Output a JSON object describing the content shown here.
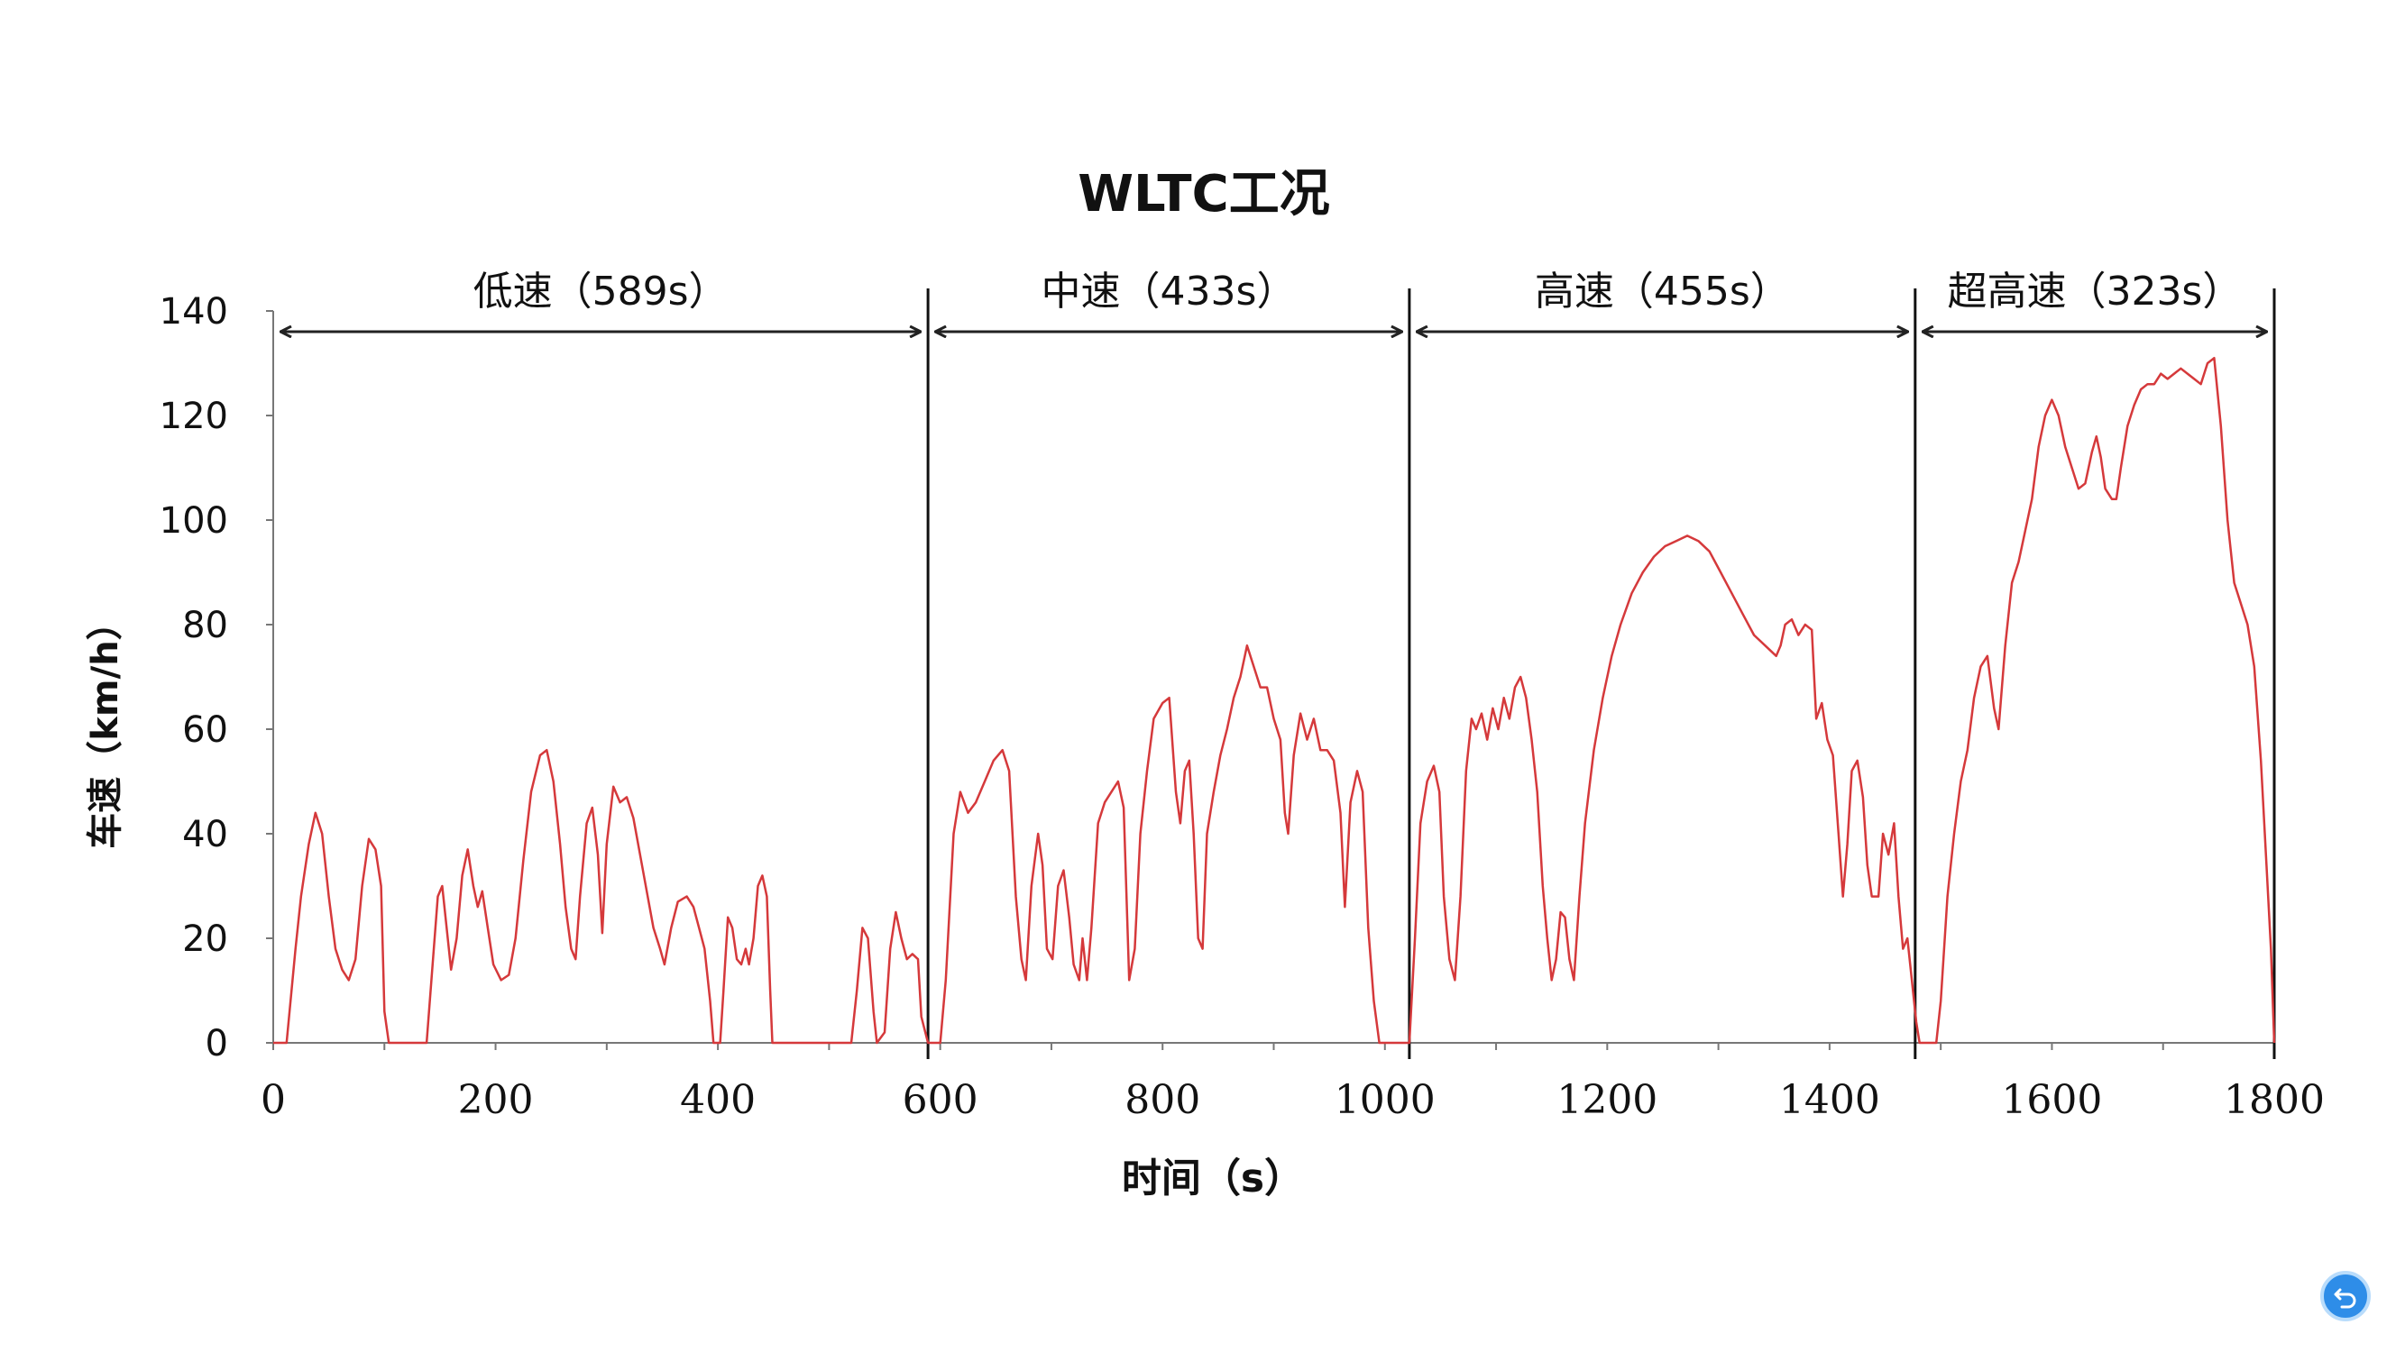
{
  "chart_data": {
    "type": "line",
    "title": "WLTC工况",
    "xlabel": "时间（s）",
    "ylabel": "车速（km/h）",
    "xlim": [
      0,
      1800
    ],
    "ylim": [
      0,
      140
    ],
    "xticks": [
      0,
      200,
      400,
      600,
      800,
      1000,
      1200,
      1400,
      1600,
      1800
    ],
    "yticks": [
      0,
      20,
      40,
      60,
      80,
      100,
      120,
      140
    ],
    "grid": false,
    "segments": [
      {
        "label": "低速（589s）",
        "start": 0,
        "end": 589
      },
      {
        "label": "中速（433s）",
        "start": 589,
        "end": 1022
      },
      {
        "label": "高速（455s）",
        "start": 1022,
        "end": 1477
      },
      {
        "label": "超高速（323s）",
        "start": 1477,
        "end": 1800
      }
    ],
    "series": [
      {
        "color": "#d5393b",
        "points": [
          [
            0,
            0
          ],
          [
            12,
            0
          ],
          [
            20,
            18
          ],
          [
            25,
            28
          ],
          [
            32,
            38
          ],
          [
            38,
            44
          ],
          [
            44,
            40
          ],
          [
            50,
            28
          ],
          [
            56,
            18
          ],
          [
            62,
            14
          ],
          [
            68,
            12
          ],
          [
            74,
            16
          ],
          [
            80,
            30
          ],
          [
            86,
            39
          ],
          [
            92,
            37
          ],
          [
            97,
            30
          ],
          [
            100,
            6
          ],
          [
            104,
            0
          ],
          [
            138,
            0
          ],
          [
            143,
            14
          ],
          [
            148,
            28
          ],
          [
            152,
            30
          ],
          [
            156,
            22
          ],
          [
            160,
            14
          ],
          [
            165,
            20
          ],
          [
            170,
            32
          ],
          [
            175,
            37
          ],
          [
            180,
            30
          ],
          [
            184,
            26
          ],
          [
            188,
            29
          ],
          [
            193,
            22
          ],
          [
            198,
            15
          ],
          [
            205,
            12
          ],
          [
            212,
            13
          ],
          [
            218,
            20
          ],
          [
            225,
            35
          ],
          [
            232,
            48
          ],
          [
            240,
            55
          ],
          [
            246,
            56
          ],
          [
            252,
            50
          ],
          [
            258,
            38
          ],
          [
            263,
            26
          ],
          [
            268,
            18
          ],
          [
            272,
            16
          ],
          [
            276,
            28
          ],
          [
            282,
            42
          ],
          [
            287,
            45
          ],
          [
            292,
            36
          ],
          [
            296,
            21
          ],
          [
            300,
            38
          ],
          [
            306,
            49
          ],
          [
            312,
            46
          ],
          [
            318,
            47
          ],
          [
            324,
            43
          ],
          [
            330,
            36
          ],
          [
            336,
            29
          ],
          [
            342,
            22
          ],
          [
            348,
            18
          ],
          [
            352,
            15
          ],
          [
            358,
            22
          ],
          [
            364,
            27
          ],
          [
            372,
            28
          ],
          [
            378,
            26
          ],
          [
            383,
            22
          ],
          [
            388,
            18
          ],
          [
            393,
            8
          ],
          [
            396,
            0
          ],
          [
            402,
            0
          ],
          [
            405,
            10
          ],
          [
            409,
            24
          ],
          [
            413,
            22
          ],
          [
            417,
            16
          ],
          [
            421,
            15
          ],
          [
            425,
            18
          ],
          [
            428,
            15
          ],
          [
            432,
            20
          ],
          [
            436,
            30
          ],
          [
            440,
            32
          ],
          [
            444,
            28
          ],
          [
            447,
            10
          ],
          [
            449,
            0
          ],
          [
            520,
            0
          ],
          [
            525,
            10
          ],
          [
            530,
            22
          ],
          [
            535,
            20
          ],
          [
            540,
            6
          ],
          [
            543,
            0
          ],
          [
            550,
            2
          ],
          [
            555,
            18
          ],
          [
            560,
            25
          ],
          [
            565,
            20
          ],
          [
            570,
            16
          ],
          [
            575,
            17
          ],
          [
            580,
            16
          ],
          [
            583,
            5
          ],
          [
            589,
            0
          ],
          [
            600,
            0
          ],
          [
            605,
            12
          ],
          [
            612,
            40
          ],
          [
            618,
            48
          ],
          [
            625,
            44
          ],
          [
            632,
            46
          ],
          [
            640,
            50
          ],
          [
            648,
            54
          ],
          [
            656,
            56
          ],
          [
            662,
            52
          ],
          [
            668,
            28
          ],
          [
            673,
            16
          ],
          [
            677,
            12
          ],
          [
            682,
            30
          ],
          [
            688,
            40
          ],
          [
            692,
            34
          ],
          [
            696,
            18
          ],
          [
            701,
            16
          ],
          [
            706,
            30
          ],
          [
            711,
            33
          ],
          [
            716,
            24
          ],
          [
            720,
            15
          ],
          [
            725,
            12
          ],
          [
            728,
            20
          ],
          [
            732,
            12
          ],
          [
            736,
            22
          ],
          [
            742,
            42
          ],
          [
            748,
            46
          ],
          [
            754,
            48
          ],
          [
            760,
            50
          ],
          [
            765,
            45
          ],
          [
            770,
            12
          ],
          [
            775,
            18
          ],
          [
            780,
            40
          ],
          [
            786,
            52
          ],
          [
            792,
            62
          ],
          [
            800,
            65
          ],
          [
            806,
            66
          ],
          [
            812,
            48
          ],
          [
            816,
            42
          ],
          [
            820,
            52
          ],
          [
            824,
            54
          ],
          [
            828,
            40
          ],
          [
            832,
            20
          ],
          [
            836,
            18
          ],
          [
            840,
            40
          ],
          [
            846,
            48
          ],
          [
            852,
            55
          ],
          [
            858,
            60
          ],
          [
            864,
            66
          ],
          [
            870,
            70
          ],
          [
            876,
            76
          ],
          [
            882,
            72
          ],
          [
            888,
            68
          ],
          [
            894,
            68
          ],
          [
            900,
            62
          ],
          [
            906,
            58
          ],
          [
            910,
            44
          ],
          [
            913,
            40
          ],
          [
            918,
            55
          ],
          [
            924,
            63
          ],
          [
            930,
            58
          ],
          [
            936,
            62
          ],
          [
            942,
            56
          ],
          [
            948,
            56
          ],
          [
            954,
            54
          ],
          [
            960,
            44
          ],
          [
            964,
            26
          ],
          [
            969,
            46
          ],
          [
            975,
            52
          ],
          [
            980,
            48
          ],
          [
            985,
            22
          ],
          [
            990,
            8
          ],
          [
            995,
            0
          ],
          [
            1022,
            0
          ],
          [
            1027,
            20
          ],
          [
            1032,
            42
          ],
          [
            1038,
            50
          ],
          [
            1044,
            53
          ],
          [
            1049,
            48
          ],
          [
            1053,
            28
          ],
          [
            1058,
            16
          ],
          [
            1063,
            12
          ],
          [
            1068,
            28
          ],
          [
            1073,
            52
          ],
          [
            1078,
            62
          ],
          [
            1082,
            60
          ],
          [
            1087,
            63
          ],
          [
            1092,
            58
          ],
          [
            1097,
            64
          ],
          [
            1102,
            60
          ],
          [
            1107,
            66
          ],
          [
            1112,
            62
          ],
          [
            1117,
            68
          ],
          [
            1122,
            70
          ],
          [
            1127,
            66
          ],
          [
            1132,
            58
          ],
          [
            1137,
            48
          ],
          [
            1142,
            30
          ],
          [
            1146,
            20
          ],
          [
            1150,
            12
          ],
          [
            1154,
            16
          ],
          [
            1158,
            25
          ],
          [
            1162,
            24
          ],
          [
            1166,
            16
          ],
          [
            1170,
            12
          ],
          [
            1175,
            28
          ],
          [
            1180,
            42
          ],
          [
            1188,
            56
          ],
          [
            1196,
            66
          ],
          [
            1204,
            74
          ],
          [
            1212,
            80
          ],
          [
            1222,
            86
          ],
          [
            1232,
            90
          ],
          [
            1242,
            93
          ],
          [
            1252,
            95
          ],
          [
            1262,
            96
          ],
          [
            1272,
            97
          ],
          [
            1282,
            96
          ],
          [
            1292,
            94
          ],
          [
            1302,
            90
          ],
          [
            1312,
            86
          ],
          [
            1322,
            82
          ],
          [
            1332,
            78
          ],
          [
            1342,
            76
          ],
          [
            1352,
            74
          ],
          [
            1356,
            76
          ],
          [
            1360,
            80
          ],
          [
            1366,
            81
          ],
          [
            1372,
            78
          ],
          [
            1378,
            80
          ],
          [
            1384,
            79
          ],
          [
            1388,
            62
          ],
          [
            1393,
            65
          ],
          [
            1398,
            58
          ],
          [
            1403,
            55
          ],
          [
            1408,
            40
          ],
          [
            1412,
            28
          ],
          [
            1416,
            38
          ],
          [
            1420,
            52
          ],
          [
            1425,
            54
          ],
          [
            1430,
            47
          ],
          [
            1434,
            34
          ],
          [
            1438,
            28
          ],
          [
            1444,
            28
          ],
          [
            1448,
            40
          ],
          [
            1453,
            36
          ],
          [
            1458,
            42
          ],
          [
            1462,
            28
          ],
          [
            1466,
            18
          ],
          [
            1470,
            20
          ],
          [
            1474,
            12
          ],
          [
            1478,
            4
          ],
          [
            1481,
            0
          ],
          [
            1496,
            0
          ],
          [
            1500,
            8
          ],
          [
            1506,
            28
          ],
          [
            1512,
            40
          ],
          [
            1518,
            50
          ],
          [
            1524,
            56
          ],
          [
            1530,
            66
          ],
          [
            1536,
            72
          ],
          [
            1542,
            74
          ],
          [
            1548,
            64
          ],
          [
            1552,
            60
          ],
          [
            1558,
            76
          ],
          [
            1564,
            88
          ],
          [
            1570,
            92
          ],
          [
            1576,
            98
          ],
          [
            1582,
            104
          ],
          [
            1588,
            114
          ],
          [
            1594,
            120
          ],
          [
            1600,
            123
          ],
          [
            1606,
            120
          ],
          [
            1612,
            114
          ],
          [
            1618,
            110
          ],
          [
            1624,
            106
          ],
          [
            1630,
            107
          ],
          [
            1636,
            113
          ],
          [
            1640,
            116
          ],
          [
            1644,
            112
          ],
          [
            1648,
            106
          ],
          [
            1654,
            104
          ],
          [
            1658,
            104
          ],
          [
            1662,
            110
          ],
          [
            1668,
            118
          ],
          [
            1674,
            122
          ],
          [
            1680,
            125
          ],
          [
            1686,
            126
          ],
          [
            1692,
            126
          ],
          [
            1698,
            128
          ],
          [
            1704,
            127
          ],
          [
            1710,
            128
          ],
          [
            1716,
            129
          ],
          [
            1722,
            128
          ],
          [
            1728,
            127
          ],
          [
            1734,
            126
          ],
          [
            1740,
            130
          ],
          [
            1746,
            131
          ],
          [
            1752,
            118
          ],
          [
            1758,
            100
          ],
          [
            1764,
            88
          ],
          [
            1770,
            84
          ],
          [
            1776,
            80
          ],
          [
            1782,
            72
          ],
          [
            1788,
            54
          ],
          [
            1793,
            34
          ],
          [
            1797,
            18
          ],
          [
            1800,
            0
          ]
        ]
      }
    ]
  },
  "ui": {
    "back_icon": "back-arrow-icon",
    "back_color": "#2e8de8"
  }
}
